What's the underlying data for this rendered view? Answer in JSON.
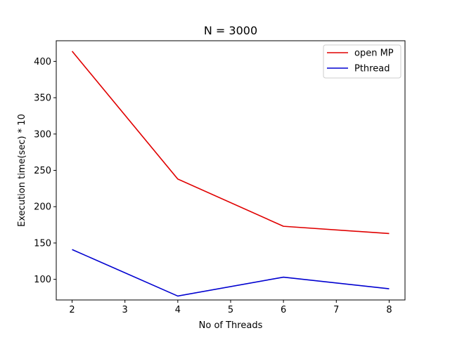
{
  "chart_data": {
    "type": "line",
    "title": "N = 3000",
    "xlabel": "No of Threads",
    "ylabel": "Execution time(sec) * 10",
    "xlim": [
      1.7,
      8.3
    ],
    "ylim": [
      71.6,
      428.4
    ],
    "xticks": [
      2,
      3,
      4,
      5,
      6,
      7,
      8
    ],
    "yticks": [
      100,
      150,
      200,
      250,
      300,
      350,
      400
    ],
    "x": [
      2,
      4,
      6,
      8
    ],
    "series": [
      {
        "name": "open MP",
        "color": "#e00000",
        "values": [
          414,
          238,
          173,
          163
        ]
      },
      {
        "name": "Pthread",
        "color": "#0000d0",
        "values": [
          141,
          77,
          103,
          87
        ]
      }
    ],
    "grid": false,
    "legend": "top-right"
  }
}
